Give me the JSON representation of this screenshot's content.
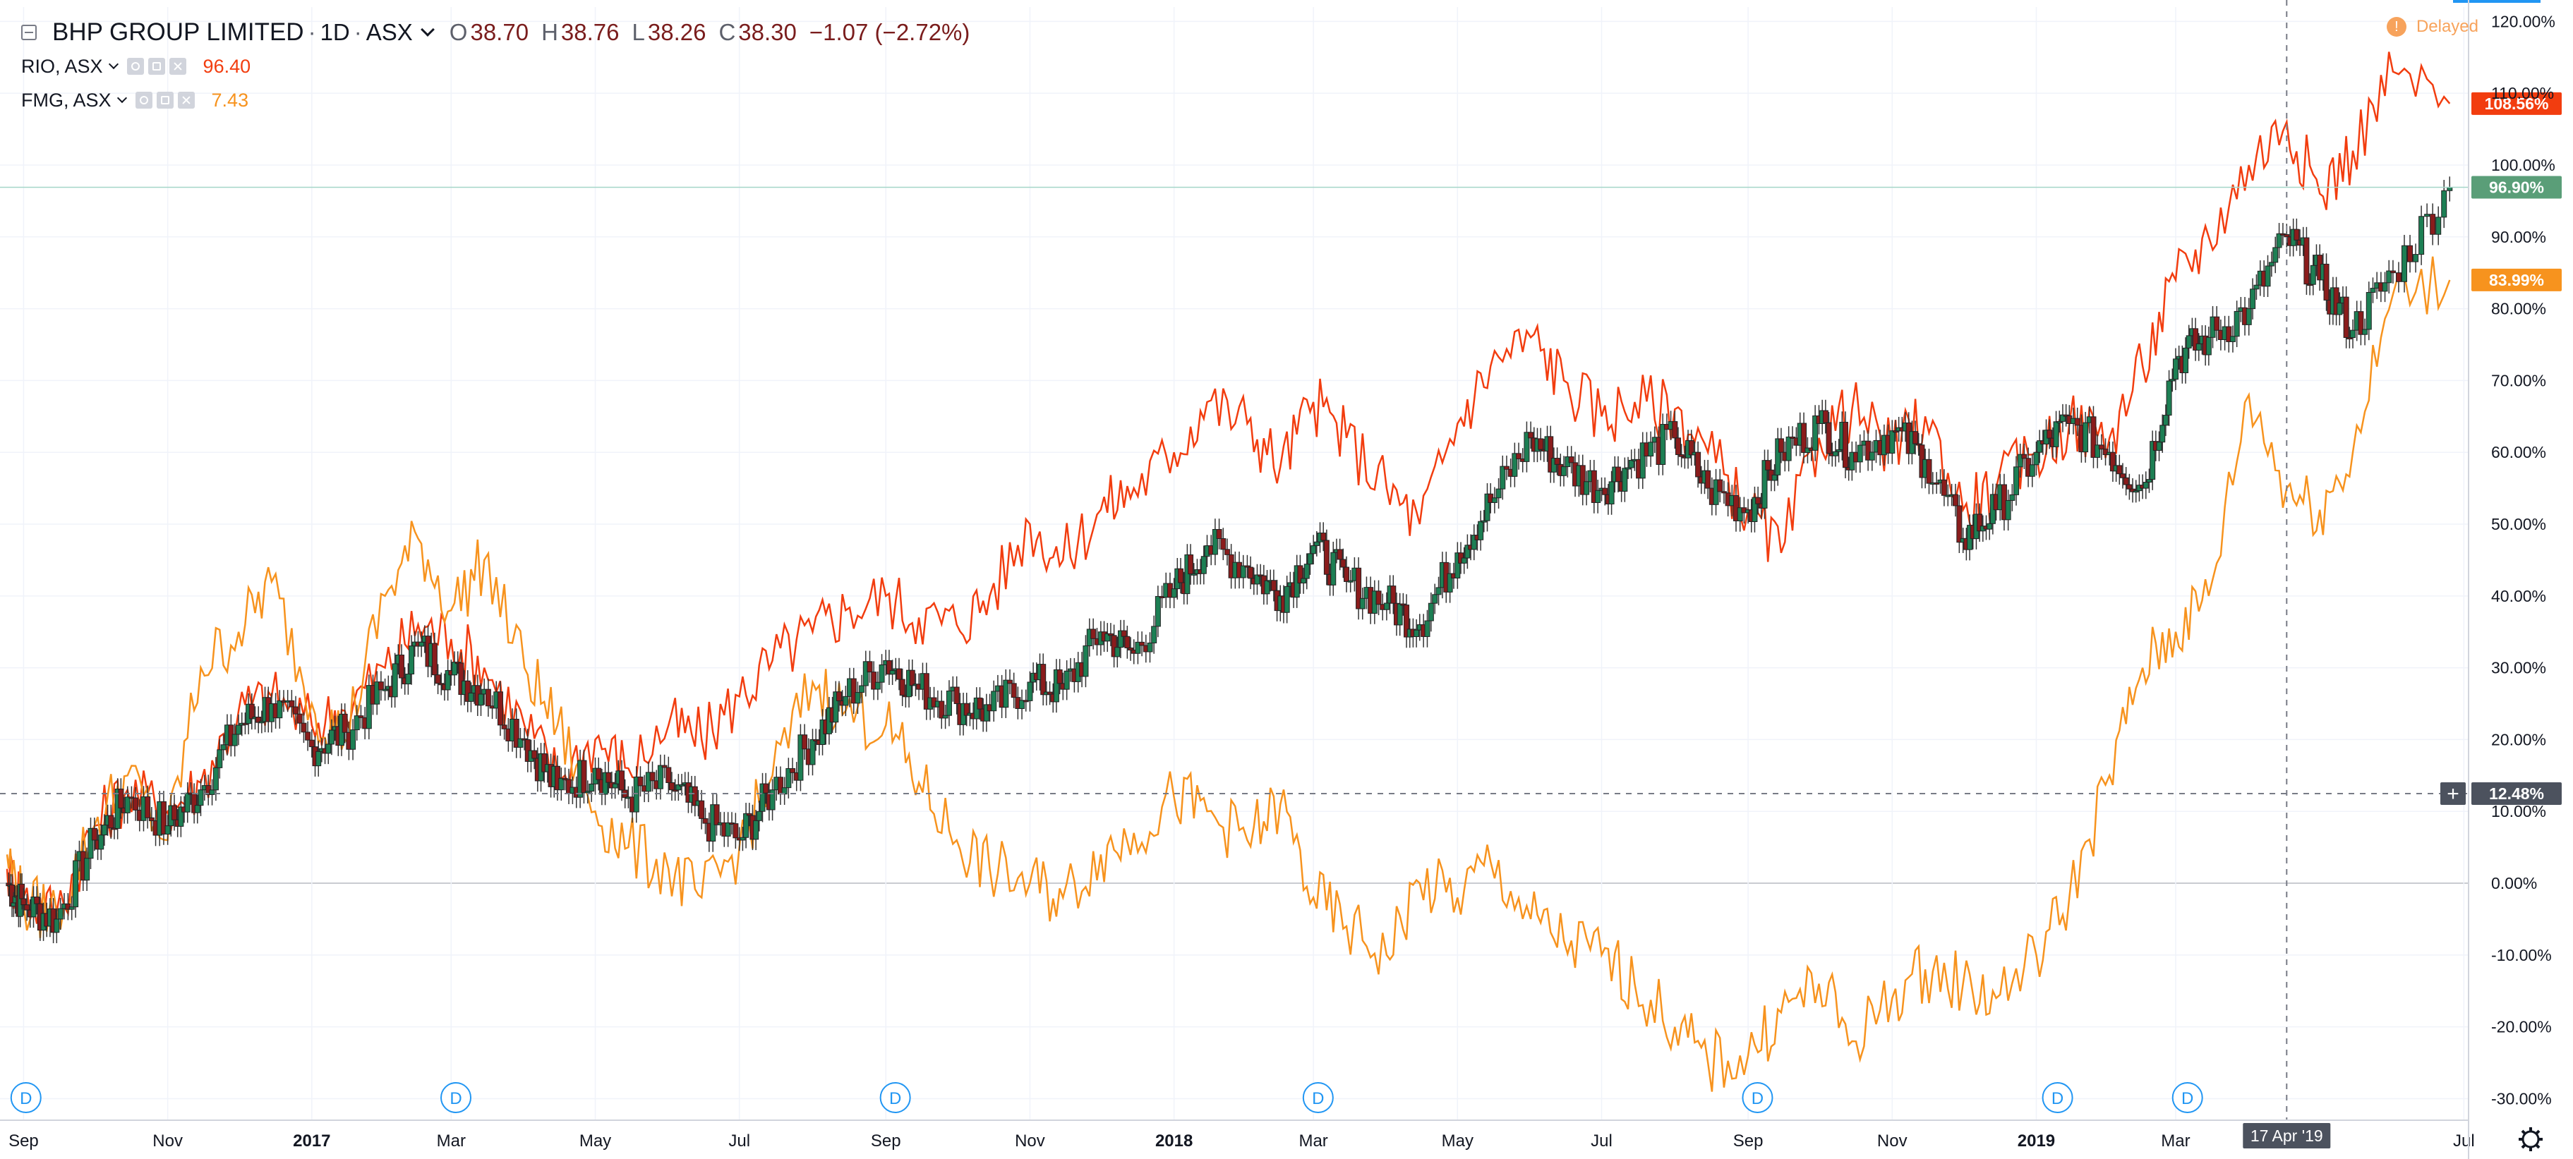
{
  "header": {
    "symbol_title": "BHP GROUP LIMITED",
    "interval": "1D",
    "exchange": "ASX",
    "ohlc": {
      "o_label": "O",
      "o": "38.70",
      "h_label": "H",
      "h": "38.76",
      "l_label": "L",
      "l": "38.26",
      "c_label": "C",
      "c": "38.30",
      "change": "−1.07 (−2.72%)"
    }
  },
  "overlays": [
    {
      "label": "RIO, ASX",
      "value": "96.40",
      "color": "#f23d0f"
    },
    {
      "label": "FMG, ASX",
      "value": "7.43",
      "color": "#f7931e"
    }
  ],
  "status": {
    "delayed_label": "Delayed",
    "delayed_badge": "!"
  },
  "colors": {
    "up": "#26a69a",
    "up_body": "#1d7f54",
    "down": "#8a1c1c",
    "rio": "#f23d0f",
    "fmg": "#f7931e",
    "bhp_badge": "#5a9e78",
    "crosshair_badge": "#4c525e",
    "grid": "#f0f3fa"
  },
  "icons": {
    "dividend": "dividend-marker-icon",
    "settings": "gear-icon",
    "crosshair": "plus-icon"
  },
  "chart_data": {
    "type": "line",
    "title": "BHP GROUP LIMITED, 1D, ASX",
    "y_axis": {
      "type": "percent",
      "range": [
        -33,
        122
      ],
      "ticks": [
        -30,
        -20,
        -10,
        0,
        10,
        20,
        30,
        40,
        50,
        60,
        70,
        80,
        90,
        100,
        110,
        120
      ],
      "tick_suffix": ".00%"
    },
    "x_axis": {
      "range": [
        "2016-08-25",
        "2019-06-30"
      ],
      "tick_labels": [
        "Sep",
        "Nov",
        "2017",
        "Mar",
        "May",
        "Jul",
        "Sep",
        "Nov",
        "2018",
        "Mar",
        "May",
        "Jul",
        "Sep",
        "Nov",
        "2019",
        "Mar",
        "Jul"
      ],
      "tick_dates": [
        "2016-09-01",
        "2016-11-01",
        "2017-01-01",
        "2017-03-01",
        "2017-05-01",
        "2017-07-01",
        "2017-09-01",
        "2017-11-01",
        "2018-01-01",
        "2018-03-01",
        "2018-05-01",
        "2018-07-01",
        "2018-09-01",
        "2018-11-01",
        "2019-01-01",
        "2019-03-01",
        "2019-07-01"
      ]
    },
    "grid": true,
    "series": [
      {
        "name": "BHP",
        "style": "candles",
        "last_label": "96.90%",
        "x": [
          "2016-08-25",
          "2016-09-01",
          "2016-09-15",
          "2016-10-01",
          "2016-10-15",
          "2016-11-01",
          "2016-11-15",
          "2016-12-01",
          "2016-12-15",
          "2017-01-01",
          "2017-01-15",
          "2017-02-01",
          "2017-02-15",
          "2017-03-01",
          "2017-03-15",
          "2017-04-01",
          "2017-04-15",
          "2017-05-01",
          "2017-05-15",
          "2017-06-01",
          "2017-06-15",
          "2017-07-01",
          "2017-07-15",
          "2017-08-01",
          "2017-08-15",
          "2017-09-01",
          "2017-09-15",
          "2017-10-01",
          "2017-10-15",
          "2017-11-01",
          "2017-11-15",
          "2017-12-01",
          "2017-12-15",
          "2018-01-01",
          "2018-01-15",
          "2018-02-01",
          "2018-02-15",
          "2018-03-01",
          "2018-03-15",
          "2018-04-01",
          "2018-04-15",
          "2018-05-01",
          "2018-05-15",
          "2018-06-01",
          "2018-06-15",
          "2018-07-01",
          "2018-07-15",
          "2018-08-01",
          "2018-08-15",
          "2018-09-01",
          "2018-09-15",
          "2018-10-01",
          "2018-10-15",
          "2018-11-01",
          "2018-11-15",
          "2018-12-01",
          "2018-12-15",
          "2019-01-01",
          "2019-01-15",
          "2019-02-01",
          "2019-02-15",
          "2019-03-01",
          "2019-03-15",
          "2019-04-01",
          "2019-04-17",
          "2019-05-01",
          "2019-05-15",
          "2019-06-01",
          "2019-06-25"
        ],
        "values": [
          0,
          -3,
          -5,
          6,
          12,
          8,
          13,
          22,
          25,
          19,
          21,
          27,
          33,
          29,
          27,
          20,
          13,
          16,
          12,
          14,
          9,
          6,
          13,
          20,
          26,
          31,
          27,
          25,
          24,
          28,
          27,
          35,
          32,
          41,
          47,
          44,
          40,
          47,
          42,
          39,
          36,
          46,
          53,
          62,
          58,
          55,
          59,
          62,
          55,
          52,
          60,
          64,
          60,
          63,
          59,
          48,
          52,
          60,
          64,
          60,
          55,
          73,
          76,
          80,
          90,
          84,
          77,
          85,
          96.9
        ]
      },
      {
        "name": "RIO",
        "style": "line",
        "last_label": "108.56%",
        "x": [
          "2016-08-25",
          "2016-09-01",
          "2016-09-15",
          "2016-10-01",
          "2016-10-15",
          "2016-11-01",
          "2016-11-15",
          "2016-12-01",
          "2016-12-15",
          "2017-01-01",
          "2017-01-15",
          "2017-02-01",
          "2017-02-15",
          "2017-03-01",
          "2017-03-15",
          "2017-04-01",
          "2017-04-15",
          "2017-05-01",
          "2017-05-15",
          "2017-06-01",
          "2017-06-15",
          "2017-07-01",
          "2017-07-15",
          "2017-08-01",
          "2017-08-15",
          "2017-09-01",
          "2017-09-15",
          "2017-10-01",
          "2017-10-15",
          "2017-11-01",
          "2017-11-15",
          "2017-12-01",
          "2017-12-15",
          "2018-01-01",
          "2018-01-15",
          "2018-02-01",
          "2018-02-15",
          "2018-03-01",
          "2018-03-15",
          "2018-04-01",
          "2018-04-15",
          "2018-05-01",
          "2018-05-15",
          "2018-06-01",
          "2018-06-15",
          "2018-07-01",
          "2018-07-15",
          "2018-08-01",
          "2018-08-15",
          "2018-09-01",
          "2018-09-15",
          "2018-10-01",
          "2018-10-15",
          "2018-11-01",
          "2018-11-15",
          "2018-12-01",
          "2018-12-15",
          "2019-01-01",
          "2019-01-15",
          "2019-02-01",
          "2019-02-15",
          "2019-03-01",
          "2019-03-15",
          "2019-04-01",
          "2019-04-17",
          "2019-05-01",
          "2019-05-15",
          "2019-06-01",
          "2019-06-25"
        ],
        "values": [
          2,
          -2,
          -4,
          8,
          13,
          10,
          14,
          24,
          26,
          22,
          24,
          30,
          36,
          34,
          30,
          22,
          15,
          20,
          16,
          22,
          20,
          26,
          31,
          35,
          38,
          40,
          37,
          36,
          40,
          50,
          45,
          52,
          55,
          60,
          67,
          64,
          58,
          67,
          62,
          55,
          50,
          64,
          72,
          76,
          70,
          65,
          67,
          66,
          60,
          52,
          46,
          62,
          66,
          60,
          65,
          52,
          55,
          60,
          64,
          62,
          72,
          84,
          90,
          100,
          106,
          96,
          102,
          113,
          108.56
        ]
      },
      {
        "name": "FMG",
        "style": "line",
        "last_label": "83.99%",
        "x": [
          "2016-08-25",
          "2016-09-01",
          "2016-09-15",
          "2016-10-01",
          "2016-10-15",
          "2016-11-01",
          "2016-11-15",
          "2016-12-01",
          "2016-12-15",
          "2017-01-01",
          "2017-01-15",
          "2017-02-01",
          "2017-02-15",
          "2017-03-01",
          "2017-03-15",
          "2017-04-01",
          "2017-04-15",
          "2017-05-01",
          "2017-05-15",
          "2017-06-01",
          "2017-06-15",
          "2017-07-01",
          "2017-07-15",
          "2017-08-01",
          "2017-08-15",
          "2017-09-01",
          "2017-09-15",
          "2017-10-01",
          "2017-10-15",
          "2017-11-01",
          "2017-11-15",
          "2017-12-01",
          "2017-12-15",
          "2018-01-01",
          "2018-01-15",
          "2018-02-01",
          "2018-02-15",
          "2018-03-01",
          "2018-03-15",
          "2018-04-01",
          "2018-04-15",
          "2018-05-01",
          "2018-05-15",
          "2018-06-01",
          "2018-06-15",
          "2018-07-01",
          "2018-07-15",
          "2018-08-01",
          "2018-08-15",
          "2018-09-01",
          "2018-09-15",
          "2018-10-01",
          "2018-10-15",
          "2018-11-01",
          "2018-11-15",
          "2018-12-01",
          "2018-12-15",
          "2019-01-01",
          "2019-01-15",
          "2019-02-01",
          "2019-02-15",
          "2019-03-01",
          "2019-03-15",
          "2019-04-01",
          "2019-04-17",
          "2019-05-01",
          "2019-05-15",
          "2019-06-01",
          "2019-06-25"
        ],
        "values": [
          4,
          -3,
          -4,
          8,
          15,
          6,
          30,
          35,
          42,
          25,
          20,
          40,
          48,
          38,
          45,
          30,
          22,
          10,
          5,
          2,
          -2,
          5,
          15,
          28,
          24,
          22,
          14,
          6,
          2,
          0,
          -2,
          4,
          7,
          12,
          10,
          6,
          11,
          -2,
          -6,
          -10,
          0,
          -2,
          3,
          -5,
          -8,
          -10,
          -14,
          -20,
          -25,
          -24,
          -18,
          -14,
          -22,
          -16,
          -12,
          -14,
          -16,
          -10,
          -2,
          15,
          30,
          35,
          40,
          68,
          55,
          52,
          60,
          82,
          84
        ]
      }
    ],
    "crosshair": {
      "date_label": "17 Apr '19",
      "value_label": "12.48%",
      "value": 12.48,
      "x": "2019-04-17"
    },
    "dividend_markers": {
      "label": "D",
      "dates": [
        "2016-09-02",
        "2017-03-03",
        "2017-09-05",
        "2018-03-03",
        "2018-09-05",
        "2019-01-10",
        "2019-03-06"
      ]
    }
  }
}
